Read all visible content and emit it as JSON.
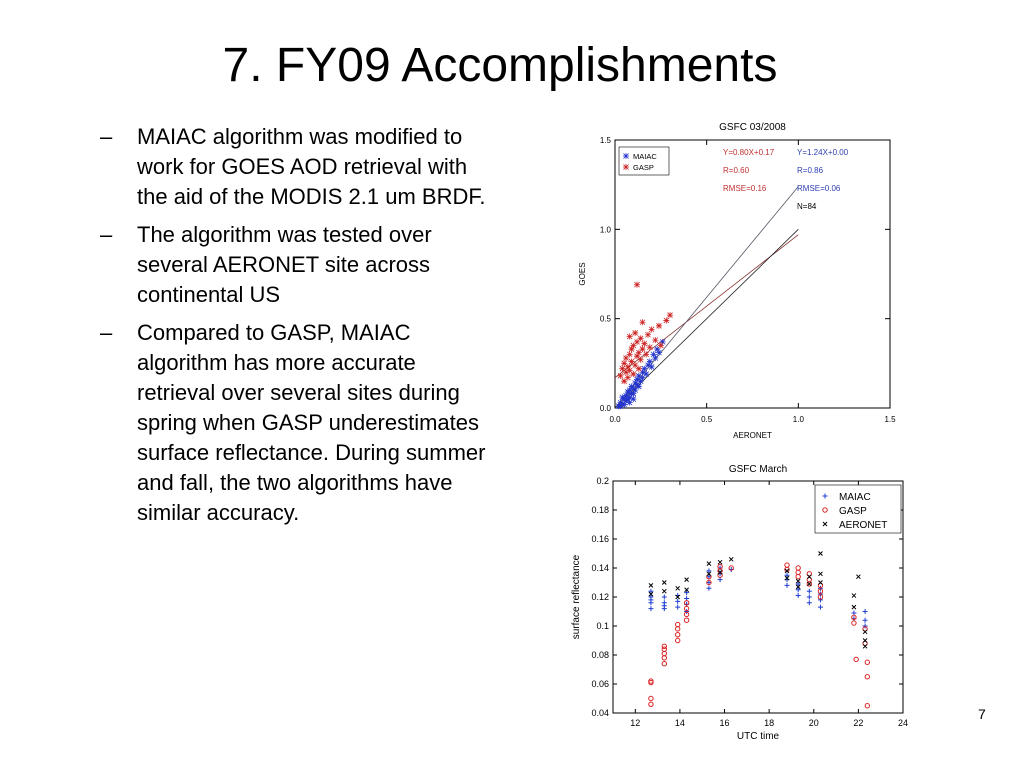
{
  "slide": {
    "title": "7. FY09 Accomplishments",
    "bullets": [
      "MAIAC algorithm was modified to work for GOES AOD retrieval with the aid of the MODIS 2.1 um BRDF.",
      "The algorithm was tested over several AERONET site across continental US",
      "Compared to GASP, MAIAC algorithm has more accurate retrieval over several sites during spring when GASP underestimates surface reflectance.  During summer and fall, the two algorithms have similar accuracy."
    ],
    "bullet_marker": "–",
    "page_number": "7"
  },
  "chart_data": [
    {
      "type": "scatter",
      "title": "GSFC 03/2008",
      "xlabel": "AERONET",
      "ylabel": "GOES",
      "xlim": [
        0,
        1.5
      ],
      "ylim": [
        0,
        1.5
      ],
      "xticks": [
        "0.0",
        "0.5",
        "1.0",
        "1.5"
      ],
      "yticks": [
        "0.0",
        "0.5",
        "1.0",
        "1.5"
      ],
      "legend": [
        "MAIAC",
        "GASP"
      ],
      "legend_position": "top-left",
      "colors": {
        "MAIAC": "#2233cc",
        "GASP": "#cc2222",
        "one_to_one": "#888888"
      },
      "stats": {
        "GASP": [
          "Y=0.80X+0.17",
          "R=0.60",
          "RMSE=0.16"
        ],
        "MAIAC": [
          "Y=1.24X+0.00",
          "R=0.86",
          "RMSE=0.06"
        ],
        "N": "N=84"
      },
      "fit_lines": [
        {
          "name": "GASP fit",
          "slope": 0.8,
          "intercept": 0.17
        },
        {
          "name": "MAIAC fit",
          "slope": 1.24,
          "intercept": 0.0
        }
      ],
      "series": [
        {
          "name": "MAIAC",
          "points": [
            [
              0.02,
              0.01
            ],
            [
              0.03,
              0.03
            ],
            [
              0.04,
              0.02
            ],
            [
              0.05,
              0.05
            ],
            [
              0.05,
              0.02
            ],
            [
              0.06,
              0.04
            ],
            [
              0.06,
              0.07
            ],
            [
              0.07,
              0.05
            ],
            [
              0.07,
              0.09
            ],
            [
              0.08,
              0.06
            ],
            [
              0.08,
              0.1
            ],
            [
              0.09,
              0.08
            ],
            [
              0.09,
              0.12
            ],
            [
              0.1,
              0.11
            ],
            [
              0.1,
              0.08
            ],
            [
              0.11,
              0.14
            ],
            [
              0.11,
              0.1
            ],
            [
              0.12,
              0.13
            ],
            [
              0.12,
              0.16
            ],
            [
              0.13,
              0.12
            ],
            [
              0.13,
              0.18
            ],
            [
              0.14,
              0.15
            ],
            [
              0.15,
              0.2
            ],
            [
              0.15,
              0.17
            ],
            [
              0.16,
              0.22
            ],
            [
              0.17,
              0.19
            ],
            [
              0.18,
              0.24
            ],
            [
              0.19,
              0.26
            ],
            [
              0.2,
              0.23
            ],
            [
              0.21,
              0.3
            ],
            [
              0.22,
              0.28
            ],
            [
              0.23,
              0.33
            ],
            [
              0.24,
              0.31
            ],
            [
              0.26,
              0.37
            ],
            [
              0.04,
              0.06
            ],
            [
              0.03,
              0.01
            ],
            [
              0.08,
              0.03
            ],
            [
              0.1,
              0.05
            ]
          ]
        },
        {
          "name": "GASP",
          "points": [
            [
              0.03,
              0.18
            ],
            [
              0.04,
              0.22
            ],
            [
              0.05,
              0.25
            ],
            [
              0.05,
              0.15
            ],
            [
              0.06,
              0.2
            ],
            [
              0.06,
              0.28
            ],
            [
              0.07,
              0.23
            ],
            [
              0.07,
              0.17
            ],
            [
              0.08,
              0.3
            ],
            [
              0.08,
              0.21
            ],
            [
              0.09,
              0.26
            ],
            [
              0.09,
              0.33
            ],
            [
              0.1,
              0.19
            ],
            [
              0.1,
              0.35
            ],
            [
              0.11,
              0.24
            ],
            [
              0.11,
              0.42
            ],
            [
              0.12,
              0.29
            ],
            [
              0.12,
              0.37
            ],
            [
              0.13,
              0.22
            ],
            [
              0.13,
              0.31
            ],
            [
              0.14,
              0.27
            ],
            [
              0.14,
              0.39
            ],
            [
              0.15,
              0.33
            ],
            [
              0.16,
              0.36
            ],
            [
              0.17,
              0.3
            ],
            [
              0.18,
              0.41
            ],
            [
              0.19,
              0.34
            ],
            [
              0.2,
              0.44
            ],
            [
              0.22,
              0.38
            ],
            [
              0.24,
              0.46
            ],
            [
              0.25,
              0.35
            ],
            [
              0.28,
              0.49
            ],
            [
              0.3,
              0.52
            ],
            [
              0.12,
              0.69
            ],
            [
              0.08,
              0.4
            ],
            [
              0.15,
              0.48
            ]
          ]
        }
      ]
    },
    {
      "type": "scatter",
      "title": "GSFC   March",
      "xlabel": "UTC time",
      "ylabel": "surface reflectance",
      "xlim": [
        11,
        24
      ],
      "ylim": [
        0.04,
        0.2
      ],
      "xticks": [
        "12",
        "14",
        "16",
        "18",
        "20",
        "22",
        "24"
      ],
      "yticks": [
        "0.04",
        "0.06",
        "0.08",
        "0.1",
        "0.12",
        "0.14",
        "0.16",
        "0.18",
        "0.2"
      ],
      "legend_position": "top-right",
      "colors": {
        "MAIAC": "#1f3fd0",
        "GASP": "#dd2222",
        "AERONET": "#000000"
      },
      "series": [
        {
          "name": "MAIAC",
          "marker": "+",
          "points": [
            [
              12.7,
              0.112
            ],
            [
              12.7,
              0.116
            ],
            [
              12.7,
              0.12
            ],
            [
              12.7,
              0.124
            ],
            [
              12.7,
              0.118
            ],
            [
              13.3,
              0.112
            ],
            [
              13.3,
              0.116
            ],
            [
              13.3,
              0.12
            ],
            [
              13.3,
              0.114
            ],
            [
              13.9,
              0.113
            ],
            [
              13.9,
              0.117
            ],
            [
              13.9,
              0.121
            ],
            [
              14.3,
              0.11
            ],
            [
              14.3,
              0.115
            ],
            [
              14.3,
              0.119
            ],
            [
              14.3,
              0.123
            ],
            [
              15.3,
              0.126
            ],
            [
              15.3,
              0.13
            ],
            [
              15.3,
              0.134
            ],
            [
              15.3,
              0.138
            ],
            [
              15.8,
              0.132
            ],
            [
              15.8,
              0.136
            ],
            [
              15.8,
              0.14
            ],
            [
              16.3,
              0.139
            ],
            [
              18.8,
              0.128
            ],
            [
              18.8,
              0.132
            ],
            [
              18.8,
              0.135
            ],
            [
              19.3,
              0.121
            ],
            [
              19.3,
              0.125
            ],
            [
              19.3,
              0.129
            ],
            [
              19.8,
              0.116
            ],
            [
              19.8,
              0.12
            ],
            [
              19.8,
              0.124
            ],
            [
              20.3,
              0.113
            ],
            [
              20.3,
              0.118
            ],
            [
              20.3,
              0.122
            ],
            [
              20.3,
              0.126
            ],
            [
              21.8,
              0.105
            ],
            [
              21.8,
              0.109
            ],
            [
              22.3,
              0.1
            ],
            [
              22.3,
              0.104
            ],
            [
              22.3,
              0.11
            ]
          ]
        },
        {
          "name": "GASP",
          "marker": "o",
          "points": [
            [
              12.7,
              0.046
            ],
            [
              12.7,
              0.05
            ],
            [
              12.7,
              0.061
            ],
            [
              12.7,
              0.062
            ],
            [
              13.3,
              0.074
            ],
            [
              13.3,
              0.078
            ],
            [
              13.3,
              0.081
            ],
            [
              13.3,
              0.084
            ],
            [
              13.3,
              0.086
            ],
            [
              13.9,
              0.09
            ],
            [
              13.9,
              0.094
            ],
            [
              13.9,
              0.098
            ],
            [
              13.9,
              0.101
            ],
            [
              14.3,
              0.104
            ],
            [
              14.3,
              0.108
            ],
            [
              14.3,
              0.112
            ],
            [
              14.3,
              0.116
            ],
            [
              15.3,
              0.13
            ],
            [
              15.3,
              0.134
            ],
            [
              15.8,
              0.135
            ],
            [
              15.8,
              0.138
            ],
            [
              15.8,
              0.141
            ],
            [
              16.3,
              0.14
            ],
            [
              18.8,
              0.139
            ],
            [
              18.8,
              0.142
            ],
            [
              19.3,
              0.134
            ],
            [
              19.3,
              0.137
            ],
            [
              19.3,
              0.14
            ],
            [
              19.8,
              0.129
            ],
            [
              19.8,
              0.132
            ],
            [
              19.8,
              0.136
            ],
            [
              20.3,
              0.12
            ],
            [
              20.3,
              0.124
            ],
            [
              20.3,
              0.128
            ],
            [
              21.8,
              0.106
            ],
            [
              21.8,
              0.102
            ],
            [
              22.3,
              0.098
            ],
            [
              22.3,
              0.088
            ],
            [
              21.9,
              0.077
            ],
            [
              22.4,
              0.075
            ],
            [
              22.4,
              0.065
            ],
            [
              22.4,
              0.045
            ]
          ]
        },
        {
          "name": "AERONET",
          "marker": "x",
          "points": [
            [
              12.7,
              0.128
            ],
            [
              12.7,
              0.122
            ],
            [
              13.3,
              0.13
            ],
            [
              13.3,
              0.124
            ],
            [
              13.9,
              0.126
            ],
            [
              13.9,
              0.12
            ],
            [
              14.3,
              0.132
            ],
            [
              14.3,
              0.125
            ],
            [
              15.3,
              0.143
            ],
            [
              15.3,
              0.136
            ],
            [
              15.8,
              0.144
            ],
            [
              15.8,
              0.137
            ],
            [
              16.3,
              0.146
            ],
            [
              18.8,
              0.138
            ],
            [
              18.8,
              0.133
            ],
            [
              19.3,
              0.131
            ],
            [
              19.3,
              0.127
            ],
            [
              19.8,
              0.134
            ],
            [
              19.8,
              0.129
            ],
            [
              20.3,
              0.15
            ],
            [
              20.3,
              0.136
            ],
            [
              20.3,
              0.13
            ],
            [
              21.8,
              0.121
            ],
            [
              21.8,
              0.113
            ],
            [
              22.0,
              0.134
            ],
            [
              22.3,
              0.096
            ],
            [
              22.3,
              0.09
            ],
            [
              22.3,
              0.086
            ]
          ]
        }
      ]
    }
  ]
}
